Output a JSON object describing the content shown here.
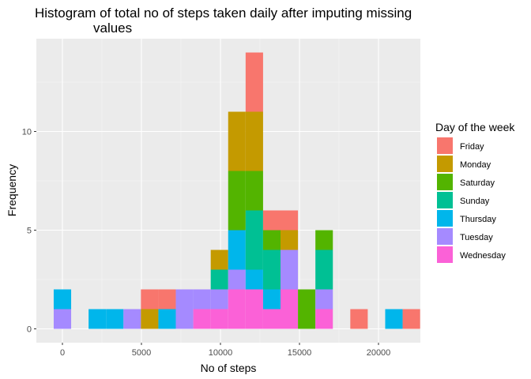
{
  "chart_data": {
    "type": "bar",
    "subtype": "stacked-histogram",
    "title_lines": [
      "Histogram of total no of steps taken daily after imputing missing",
      "values"
    ],
    "xlabel": "No of steps",
    "ylabel": "Frequency",
    "xlim": [
      -1650,
      22650
    ],
    "ylim": [
      -0.7,
      14.7
    ],
    "x_ticks": [
      0,
      5000,
      10000,
      15000,
      20000
    ],
    "y_ticks": [
      0,
      5,
      10
    ],
    "bin_width": 1104,
    "grid": true,
    "legend_position": "right",
    "legend_title": "Day of the week",
    "series": [
      {
        "name": "Friday",
        "color": "#F8766D"
      },
      {
        "name": "Monday",
        "color": "#C49A00"
      },
      {
        "name": "Saturday",
        "color": "#53B400"
      },
      {
        "name": "Sunday",
        "color": "#00C094"
      },
      {
        "name": "Thursday",
        "color": "#00B6EB"
      },
      {
        "name": "Tuesday",
        "color": "#A58AFF"
      },
      {
        "name": "Wednesday",
        "color": "#FB61D7"
      }
    ],
    "bins": [
      {
        "center": 0,
        "counts": {
          "Thursday": 1,
          "Tuesday": 1
        }
      },
      {
        "center": 2208,
        "counts": {
          "Thursday": 1
        }
      },
      {
        "center": 3312,
        "counts": {
          "Thursday": 1
        }
      },
      {
        "center": 4416,
        "counts": {
          "Tuesday": 1
        }
      },
      {
        "center": 5520,
        "counts": {
          "Friday": 1,
          "Monday": 1
        }
      },
      {
        "center": 6624,
        "counts": {
          "Friday": 1,
          "Thursday": 1
        }
      },
      {
        "center": 7728,
        "counts": {
          "Tuesday": 2
        }
      },
      {
        "center": 8832,
        "counts": {
          "Wednesday": 1,
          "Tuesday": 1
        }
      },
      {
        "center": 9936,
        "counts": {
          "Wednesday": 1,
          "Tuesday": 1,
          "Sunday": 1,
          "Monday": 1
        }
      },
      {
        "center": 11040,
        "counts": {
          "Wednesday": 2,
          "Tuesday": 1,
          "Thursday": 2,
          "Saturday": 3,
          "Monday": 3
        }
      },
      {
        "center": 12144,
        "counts": {
          "Wednesday": 2,
          "Thursday": 1,
          "Sunday": 3,
          "Saturday": 2,
          "Monday": 3,
          "Friday": 3
        }
      },
      {
        "center": 13248,
        "counts": {
          "Wednesday": 1,
          "Thursday": 1,
          "Sunday": 2,
          "Saturday": 1,
          "Friday": 1
        }
      },
      {
        "center": 14352,
        "counts": {
          "Wednesday": 2,
          "Tuesday": 2,
          "Monday": 1,
          "Friday": 1
        }
      },
      {
        "center": 15456,
        "counts": {
          "Saturday": 2
        }
      },
      {
        "center": 16560,
        "counts": {
          "Wednesday": 1,
          "Tuesday": 1,
          "Sunday": 2,
          "Saturday": 1
        }
      },
      {
        "center": 17664,
        "counts": {}
      },
      {
        "center": 18768,
        "counts": {
          "Friday": 1
        }
      },
      {
        "center": 19872,
        "counts": {}
      },
      {
        "center": 20976,
        "counts": {
          "Thursday": 1
        }
      },
      {
        "center": 22080,
        "counts": {
          "Friday": 1
        }
      }
    ]
  }
}
